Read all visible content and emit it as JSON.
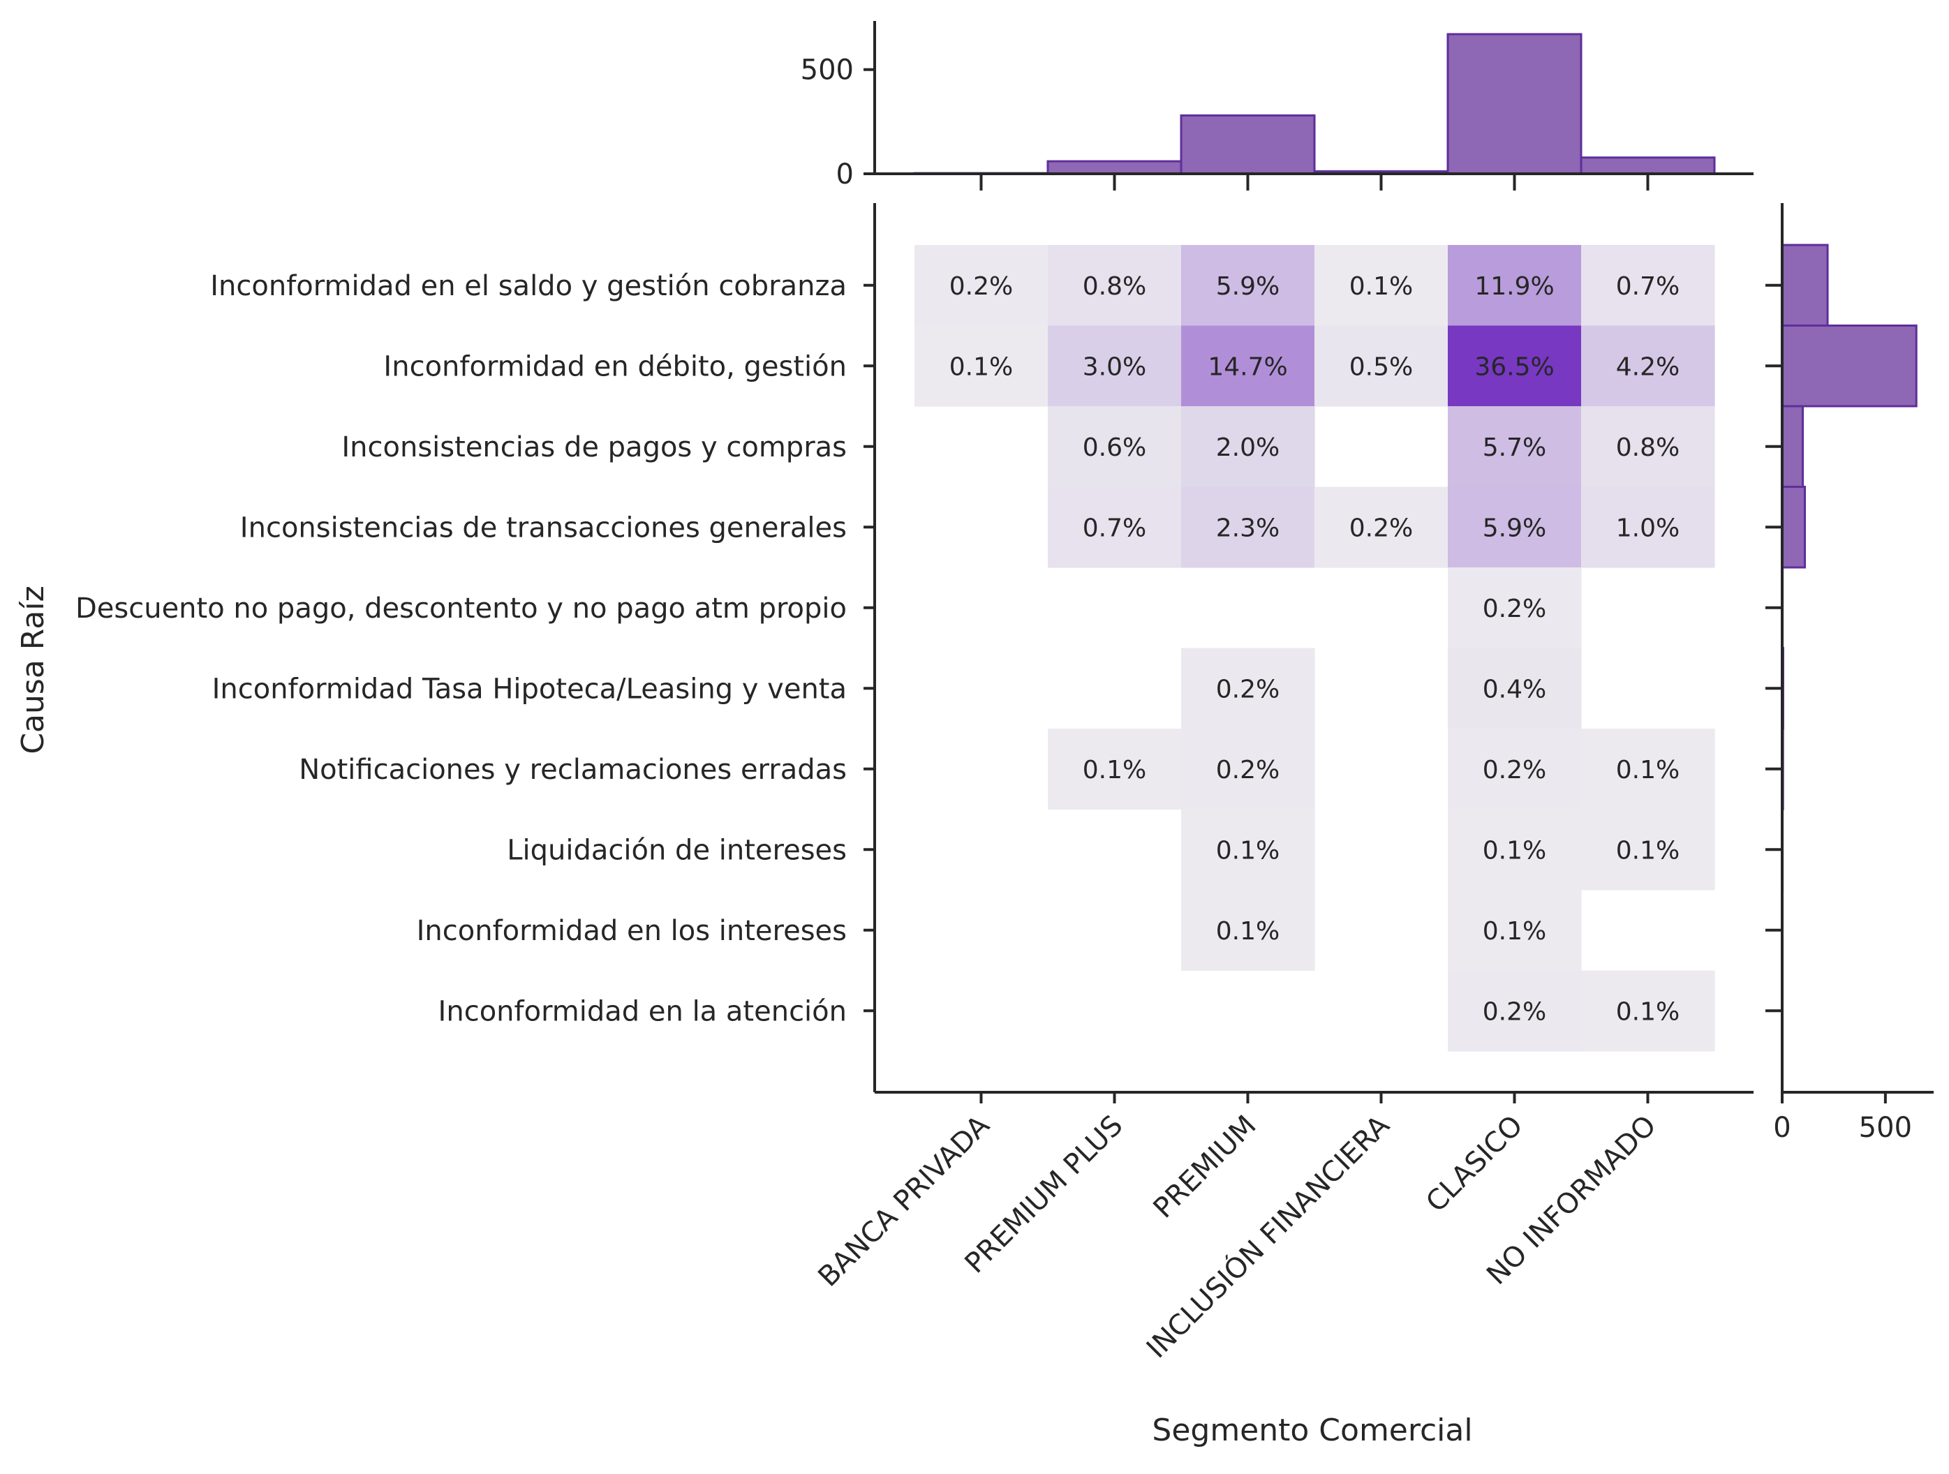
{
  "chart_data": {
    "type": "heatmap",
    "xlabel": "Segmento Comercial",
    "ylabel": "Causa Raíz",
    "categories_x": [
      "BANCA PRIVADA",
      "PREMIUM PLUS",
      "PREMIUM",
      "INCLUSIÓN FINANCIERA",
      "CLASICO",
      "NO INFORMADO"
    ],
    "categories_y": [
      "Inconformidad en el saldo y gestión cobranza",
      "Inconformidad en débito, gestión ",
      "Inconsistencias de pagos y compras",
      "Inconsistencias de transacciones generales",
      "Descuento no pago, descontento y no pago atm propio",
      "Inconformidad Tasa Hipoteca/Leasing y venta",
      "Notificaciones y reclamaciones erradas",
      "Liquidación de intereses",
      "Inconformidad en los intereses",
      "Inconformidad en la atención"
    ],
    "values_pct": [
      [
        0.2,
        0.8,
        5.9,
        0.1,
        11.9,
        0.7
      ],
      [
        0.1,
        3.0,
        14.7,
        0.5,
        36.5,
        4.2
      ],
      [
        null,
        0.6,
        2.0,
        null,
        5.7,
        0.8
      ],
      [
        null,
        0.7,
        2.3,
        0.2,
        5.9,
        1.0
      ],
      [
        null,
        null,
        null,
        null,
        0.2,
        null
      ],
      [
        null,
        null,
        0.2,
        null,
        0.4,
        null
      ],
      [
        null,
        0.1,
        0.2,
        null,
        0.2,
        0.1
      ],
      [
        null,
        null,
        0.1,
        null,
        0.1,
        0.1
      ],
      [
        null,
        null,
        0.1,
        null,
        0.1,
        null
      ],
      [
        null,
        null,
        null,
        null,
        0.2,
        0.1
      ]
    ],
    "cell_labels": [
      [
        "0.2%",
        "0.8%",
        "5.9%",
        "0.1%",
        "11.9%",
        "0.7%"
      ],
      [
        "0.1%",
        "3.0%",
        "14.7%",
        "0.5%",
        "36.5%",
        "4.2%"
      ],
      [
        "",
        "0.6%",
        "2.0%",
        "",
        "5.7%",
        "0.8%"
      ],
      [
        "",
        "0.7%",
        "2.3%",
        "0.2%",
        "5.9%",
        "1.0%"
      ],
      [
        "",
        "",
        "",
        "",
        "0.2%",
        ""
      ],
      [
        "",
        "",
        "0.2%",
        "",
        "0.4%",
        ""
      ],
      [
        "",
        "0.1%",
        "0.2%",
        "",
        "0.2%",
        "0.1%"
      ],
      [
        "",
        "",
        "0.1%",
        "",
        "0.1%",
        "0.1%"
      ],
      [
        "",
        "",
        "0.1%",
        "",
        "0.1%",
        ""
      ],
      [
        "",
        "",
        "",
        "",
        "0.2%",
        "0.1%"
      ]
    ],
    "marginal_x": {
      "type": "histogram",
      "values": [
        3,
        60,
        280,
        12,
        670,
        78
      ],
      "ylim": [
        0,
        700
      ],
      "ticks": [
        0,
        500
      ],
      "tick_labels": [
        "0",
        "500"
      ]
    },
    "marginal_y": {
      "type": "histogram",
      "values": [
        220,
        650,
        100,
        110,
        2,
        5,
        4,
        2,
        1,
        1
      ],
      "xlim": [
        0,
        700
      ],
      "ticks": [
        0,
        500
      ],
      "tick_labels": [
        "0",
        "500"
      ]
    },
    "colormap": {
      "low": "#eeedf0",
      "high": "#7838c2",
      "vmax": 36.5
    },
    "hist_fill": "#8e67b5",
    "hist_edge": "#5f2f9a",
    "grid": false,
    "legend": "none"
  }
}
